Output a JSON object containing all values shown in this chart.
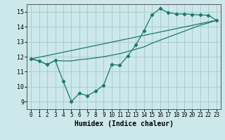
{
  "bg_color": "#cce8eb",
  "grid_color": "#aacccc",
  "line_color": "#1a7a6a",
  "xlabel": "Humidex (Indice chaleur)",
  "xlim": [
    -0.5,
    23.5
  ],
  "ylim": [
    8.5,
    15.5
  ],
  "xticks": [
    0,
    1,
    2,
    3,
    4,
    5,
    6,
    7,
    8,
    9,
    10,
    11,
    12,
    13,
    14,
    15,
    16,
    17,
    18,
    19,
    20,
    21,
    22,
    23
  ],
  "yticks": [
    9,
    10,
    11,
    12,
    13,
    14,
    15
  ],
  "line1_x": [
    0,
    1,
    2,
    3,
    4,
    5,
    6,
    7,
    8,
    9,
    10,
    11,
    12,
    13,
    14,
    15,
    16,
    17,
    18,
    19,
    20,
    21,
    22,
    23
  ],
  "line1_y": [
    11.85,
    11.72,
    11.48,
    11.75,
    10.35,
    9.02,
    9.55,
    9.4,
    9.7,
    10.1,
    11.48,
    11.43,
    12.05,
    12.78,
    13.72,
    14.8,
    15.2,
    14.95,
    14.85,
    14.85,
    14.82,
    14.78,
    14.77,
    14.43
  ],
  "line2_x": [
    0,
    1,
    2,
    3,
    4,
    5,
    6,
    7,
    8,
    9,
    10,
    11,
    12,
    13,
    14,
    15,
    16,
    17,
    18,
    19,
    20,
    21,
    22,
    23
  ],
  "line2_y": [
    11.85,
    11.72,
    11.48,
    11.75,
    11.72,
    11.72,
    11.8,
    11.85,
    11.92,
    12.0,
    12.1,
    12.2,
    12.35,
    12.5,
    12.65,
    12.9,
    13.1,
    13.3,
    13.5,
    13.7,
    13.9,
    14.1,
    14.25,
    14.43
  ],
  "line3_x": [
    0,
    23
  ],
  "line3_y": [
    11.85,
    14.43
  ]
}
